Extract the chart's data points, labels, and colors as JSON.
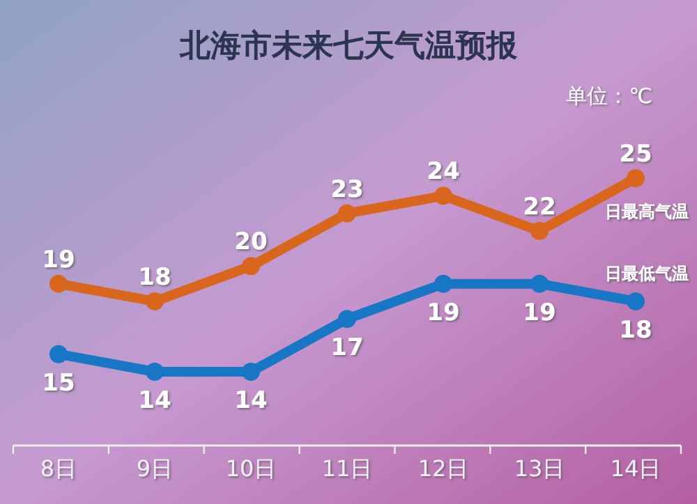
{
  "chart_data": {
    "type": "line",
    "title": "北海市未来七天气温预报",
    "annotations": [
      "单位：℃"
    ],
    "categories": [
      "8日",
      "9日",
      "10日",
      "11日",
      "12日",
      "13日",
      "14日"
    ],
    "series": [
      {
        "name": "日最高气温",
        "color": "#d8661c",
        "values": [
          19,
          18,
          20,
          23,
          24,
          22,
          25
        ]
      },
      {
        "name": "日最低气温",
        "color": "#1877c4",
        "values": [
          15,
          14,
          14,
          17,
          19,
          19,
          18
        ]
      }
    ],
    "data_labels": true,
    "marker": "circle"
  }
}
